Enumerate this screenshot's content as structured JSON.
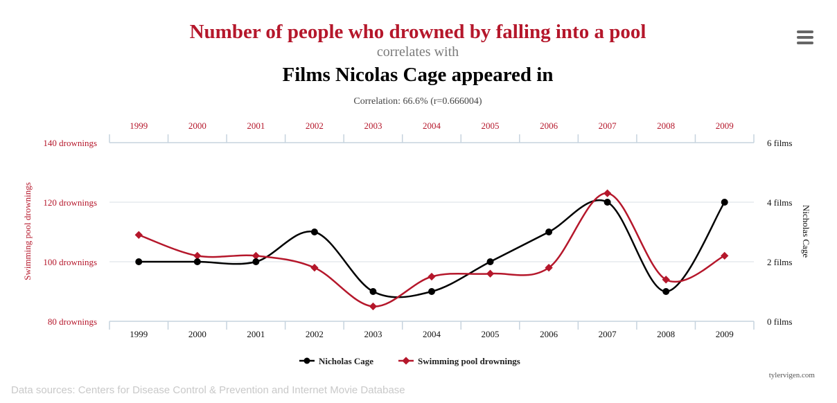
{
  "header": {
    "title_line1": "Number of people who drowned by falling into a pool",
    "title_line2": "correlates with",
    "title_line3": "Films Nicolas Cage appeared in",
    "correlation": "Correlation: 66.6% (r=0.666004)"
  },
  "menu": {
    "icon": "hamburger-menu-icon"
  },
  "footer": {
    "credit": "tylervigen.com",
    "sources": "Data sources: Centers for Disease Control & Prevention and Internet Movie Database"
  },
  "colors": {
    "drowning": "#b5172b",
    "cage": "#000000",
    "grid": "#d9dfe6",
    "axis": "#c6d3de"
  },
  "chart_data": {
    "type": "line",
    "x": [
      "1999",
      "2000",
      "2001",
      "2002",
      "2003",
      "2004",
      "2005",
      "2006",
      "2007",
      "2008",
      "2009"
    ],
    "series": [
      {
        "name": "Nicholas Cage",
        "axis": "right",
        "values": [
          2,
          2,
          2,
          3,
          1,
          1,
          2,
          3,
          4,
          1,
          4
        ]
      },
      {
        "name": "Swimming pool drownings",
        "axis": "left",
        "values": [
          109,
          102,
          102,
          98,
          85,
          95,
          96,
          98,
          123,
          94,
          102
        ]
      }
    ],
    "y_left": {
      "label": "Swimming pool drownings",
      "ticks": [
        "80 drownings",
        "100 drownings",
        "120 drownings",
        "140 drownings"
      ],
      "range": [
        80,
        140
      ]
    },
    "y_right": {
      "label": "Nicholas Cage",
      "ticks": [
        "0 films",
        "2 films",
        "4 films",
        "6 films"
      ],
      "range": [
        0,
        6
      ]
    },
    "grid": true,
    "legend_position": "bottom-center"
  }
}
